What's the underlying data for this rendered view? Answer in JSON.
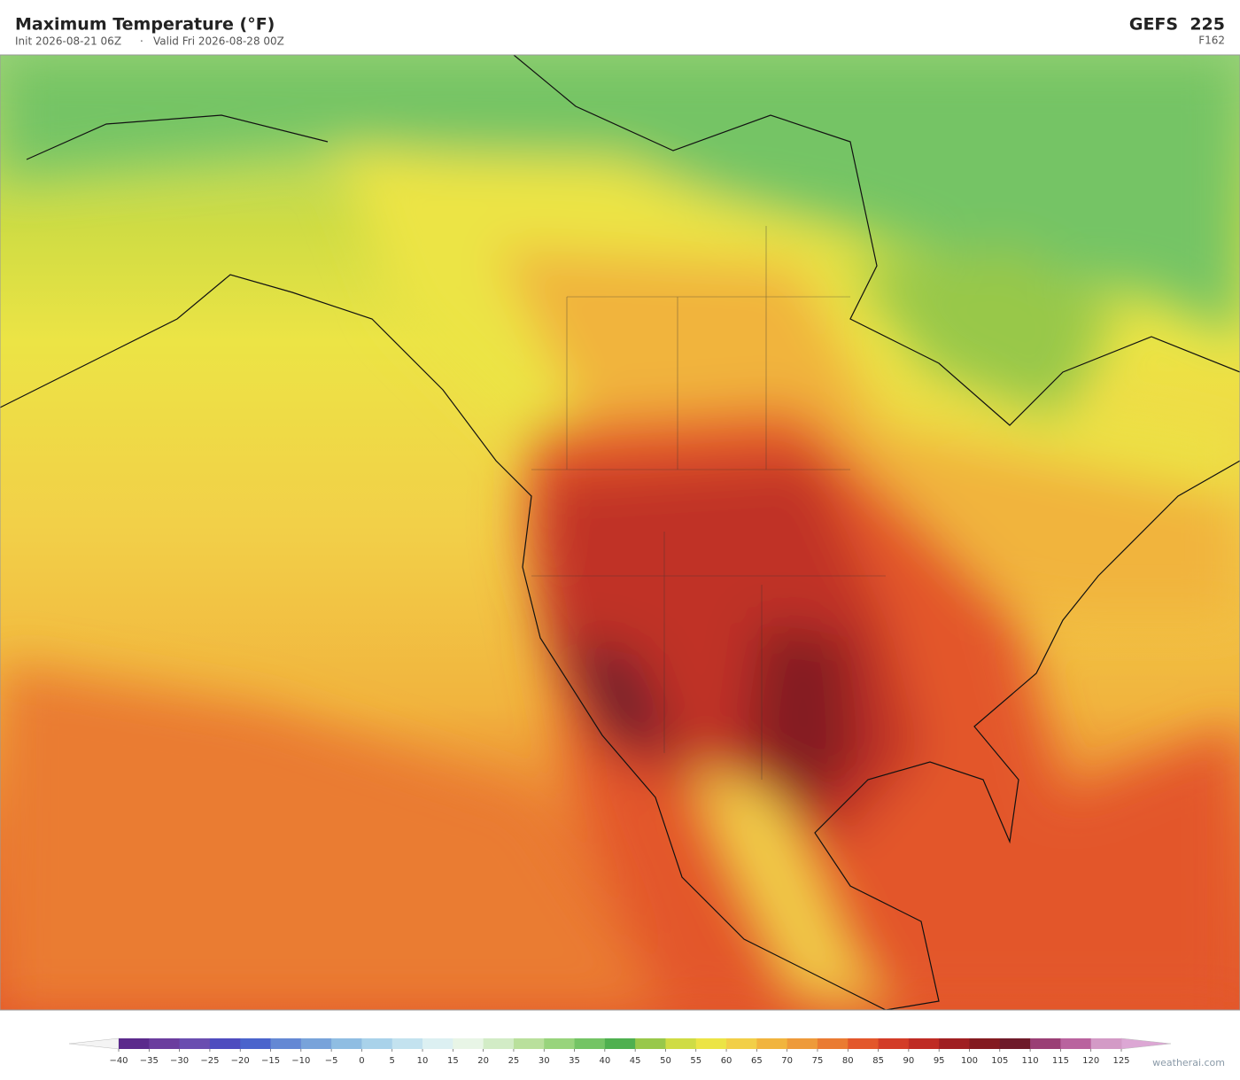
{
  "header": {
    "title": "Maximum Temperature  (°F)",
    "init": "Init 2026-08-21 06Z",
    "separator": "·",
    "valid": "Valid Fri 2026-08-28 00Z",
    "model": "GEFS  225",
    "forecast_hour": "F162"
  },
  "colorbar": {
    "ticks": [
      {
        "value": -40,
        "label": "−40"
      },
      {
        "value": -35,
        "label": "−35"
      },
      {
        "value": -30,
        "label": "−30"
      },
      {
        "value": -25,
        "label": "−25"
      },
      {
        "value": -20,
        "label": "−20"
      },
      {
        "value": -15,
        "label": "−15"
      },
      {
        "value": -10,
        "label": "−10"
      },
      {
        "value": -5,
        "label": "−5"
      },
      0,
      5,
      10,
      15,
      20,
      25,
      30,
      35,
      40,
      45,
      50,
      55,
      60,
      65,
      70,
      75,
      80,
      85,
      90,
      95,
      100,
      105,
      110,
      115,
      120,
      125
    ],
    "colors": [
      "#5b2a8c",
      "#6b3d9e",
      "#6a4db0",
      "#4e4cbf",
      "#4a64cc",
      "#6488d4",
      "#78a3da",
      "#8fbde2",
      "#a9d2ea",
      "#c3e2ef",
      "#dcf0f2",
      "#e8f5e6",
      "#d2ecc6",
      "#b9e09c",
      "#98d47c",
      "#74c465",
      "#4fb050",
      "#98c84a",
      "#cfdc44",
      "#ece445",
      "#f2cf48",
      "#f1b43e",
      "#ee9a3a",
      "#ea7b32",
      "#e3572b",
      "#d33c27",
      "#bf2b24",
      "#a01f22",
      "#841a20",
      "#6e1a2a",
      "#9a3f75",
      "#b9639e",
      "#d39ac6"
    ],
    "under_color": "#f4f4f4",
    "over_color": "#dca7d4"
  },
  "footer": {
    "credit": "weatherai.com"
  }
}
